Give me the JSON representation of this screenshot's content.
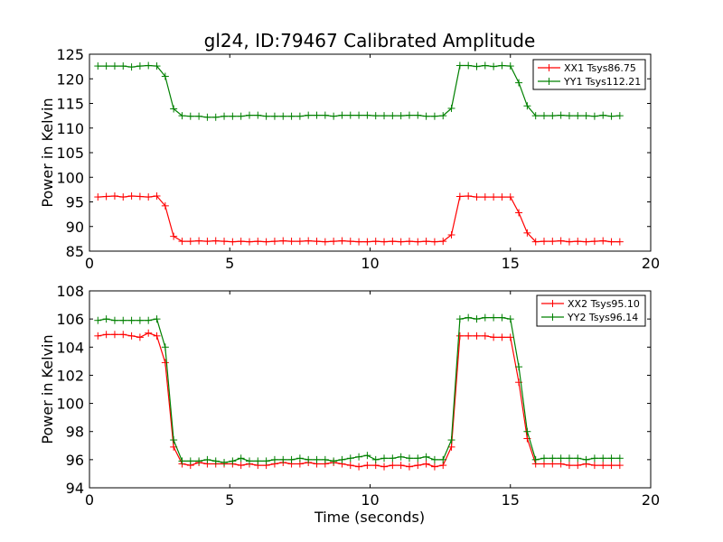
{
  "chart_data": [
    {
      "type": "line",
      "title": "gl24, ID:79467 Calibrated Amplitude",
      "xlabel": "",
      "ylabel": "Power in Kelvin",
      "xlim": [
        0,
        20
      ],
      "ylim": [
        85,
        125
      ],
      "xticks": [
        0,
        5,
        10,
        15,
        20
      ],
      "yticks": [
        85,
        90,
        95,
        100,
        105,
        110,
        115,
        120,
        125
      ],
      "legend_position": "top-right",
      "x": [
        0.3,
        0.6,
        0.9,
        1.2,
        1.5,
        1.8,
        2.1,
        2.4,
        2.7,
        3.0,
        3.3,
        3.6,
        3.9,
        4.2,
        4.5,
        4.8,
        5.1,
        5.4,
        5.7,
        6.0,
        6.3,
        6.6,
        6.9,
        7.2,
        7.5,
        7.8,
        8.1,
        8.4,
        8.7,
        9.0,
        9.3,
        9.6,
        9.9,
        10.2,
        10.5,
        10.8,
        11.1,
        11.4,
        11.7,
        12.0,
        12.3,
        12.6,
        12.9,
        13.2,
        13.5,
        13.8,
        14.1,
        14.4,
        14.7,
        15.0,
        15.3,
        15.6,
        15.9,
        16.2,
        16.5,
        16.8,
        17.1,
        17.4,
        17.7,
        18.0,
        18.3,
        18.6,
        18.9
      ],
      "series": [
        {
          "name": "XX1 Tsys86.75",
          "color": "#ff0000",
          "values": [
            96.0,
            96.1,
            96.2,
            96.0,
            96.2,
            96.1,
            96.0,
            96.2,
            94.2,
            88.0,
            87.0,
            87.0,
            87.1,
            87.0,
            87.1,
            87.0,
            86.9,
            87.0,
            86.9,
            87.0,
            86.9,
            87.0,
            87.1,
            87.0,
            87.0,
            87.1,
            87.0,
            86.9,
            87.0,
            87.1,
            87.0,
            86.9,
            86.9,
            87.0,
            86.9,
            87.0,
            86.9,
            87.0,
            86.9,
            87.0,
            86.9,
            87.0,
            88.3,
            96.1,
            96.2,
            96.0,
            96.0,
            96.0,
            96.0,
            96.0,
            92.8,
            88.7,
            86.9,
            87.0,
            87.0,
            87.1,
            86.9,
            87.0,
            86.9,
            87.0,
            87.1,
            86.9,
            86.9
          ]
        },
        {
          "name": "YY1 Tsys112.21",
          "color": "#008000",
          "values": [
            122.6,
            122.6,
            122.6,
            122.6,
            122.4,
            122.6,
            122.7,
            122.6,
            120.5,
            113.9,
            112.5,
            112.4,
            112.4,
            112.2,
            112.2,
            112.4,
            112.4,
            112.4,
            112.6,
            112.6,
            112.4,
            112.4,
            112.4,
            112.4,
            112.4,
            112.6,
            112.6,
            112.6,
            112.4,
            112.6,
            112.6,
            112.6,
            112.6,
            112.5,
            112.5,
            112.5,
            112.5,
            112.6,
            112.6,
            112.4,
            112.4,
            112.5,
            114.0,
            122.7,
            122.7,
            122.5,
            122.7,
            122.5,
            122.7,
            122.6,
            119.2,
            114.5,
            112.5,
            112.5,
            112.5,
            112.6,
            112.5,
            112.5,
            112.5,
            112.4,
            112.6,
            112.4,
            112.5
          ]
        }
      ]
    },
    {
      "type": "line",
      "title": "",
      "xlabel": "Time (seconds)",
      "ylabel": "Power in Kelvin",
      "xlim": [
        0,
        20
      ],
      "ylim": [
        94,
        108
      ],
      "xticks": [
        0,
        5,
        10,
        15,
        20
      ],
      "yticks": [
        94,
        96,
        98,
        100,
        102,
        104,
        106,
        108
      ],
      "legend_position": "top-right",
      "x": [
        0.3,
        0.6,
        0.9,
        1.2,
        1.5,
        1.8,
        2.1,
        2.4,
        2.7,
        3.0,
        3.3,
        3.6,
        3.9,
        4.2,
        4.5,
        4.8,
        5.1,
        5.4,
        5.7,
        6.0,
        6.3,
        6.6,
        6.9,
        7.2,
        7.5,
        7.8,
        8.1,
        8.4,
        8.7,
        9.0,
        9.3,
        9.6,
        9.9,
        10.2,
        10.5,
        10.8,
        11.1,
        11.4,
        11.7,
        12.0,
        12.3,
        12.6,
        12.9,
        13.2,
        13.5,
        13.8,
        14.1,
        14.4,
        14.7,
        15.0,
        15.3,
        15.6,
        15.9,
        16.2,
        16.5,
        16.8,
        17.1,
        17.4,
        17.7,
        18.0,
        18.3,
        18.6,
        18.9
      ],
      "series": [
        {
          "name": "XX2 Tsys95.10",
          "color": "#ff0000",
          "values": [
            104.8,
            104.9,
            104.9,
            104.9,
            104.8,
            104.7,
            105.0,
            104.8,
            102.9,
            96.9,
            95.7,
            95.6,
            95.8,
            95.7,
            95.7,
            95.7,
            95.7,
            95.6,
            95.7,
            95.6,
            95.6,
            95.7,
            95.8,
            95.7,
            95.7,
            95.8,
            95.7,
            95.7,
            95.8,
            95.7,
            95.6,
            95.5,
            95.6,
            95.6,
            95.5,
            95.6,
            95.6,
            95.5,
            95.6,
            95.7,
            95.5,
            95.6,
            96.9,
            104.8,
            104.8,
            104.8,
            104.8,
            104.7,
            104.7,
            104.7,
            101.5,
            97.5,
            95.7,
            95.7,
            95.7,
            95.7,
            95.6,
            95.6,
            95.7,
            95.6,
            95.6,
            95.6,
            95.6
          ]
        },
        {
          "name": "YY2 Tsys96.14",
          "color": "#008000",
          "values": [
            105.9,
            106.0,
            105.9,
            105.9,
            105.9,
            105.9,
            105.9,
            106.0,
            104.0,
            97.4,
            95.9,
            95.9,
            95.9,
            96.0,
            95.9,
            95.8,
            95.9,
            96.1,
            95.9,
            95.9,
            95.9,
            96.0,
            96.0,
            96.0,
            96.1,
            96.0,
            96.0,
            96.0,
            95.9,
            96.0,
            96.1,
            96.2,
            96.3,
            96.0,
            96.1,
            96.1,
            96.2,
            96.1,
            96.1,
            96.2,
            96.0,
            96.0,
            97.4,
            106.0,
            106.1,
            106.0,
            106.1,
            106.1,
            106.1,
            106.0,
            102.6,
            98.0,
            96.0,
            96.1,
            96.1,
            96.1,
            96.1,
            96.1,
            96.0,
            96.1,
            96.1,
            96.1,
            96.1
          ]
        }
      ]
    }
  ]
}
